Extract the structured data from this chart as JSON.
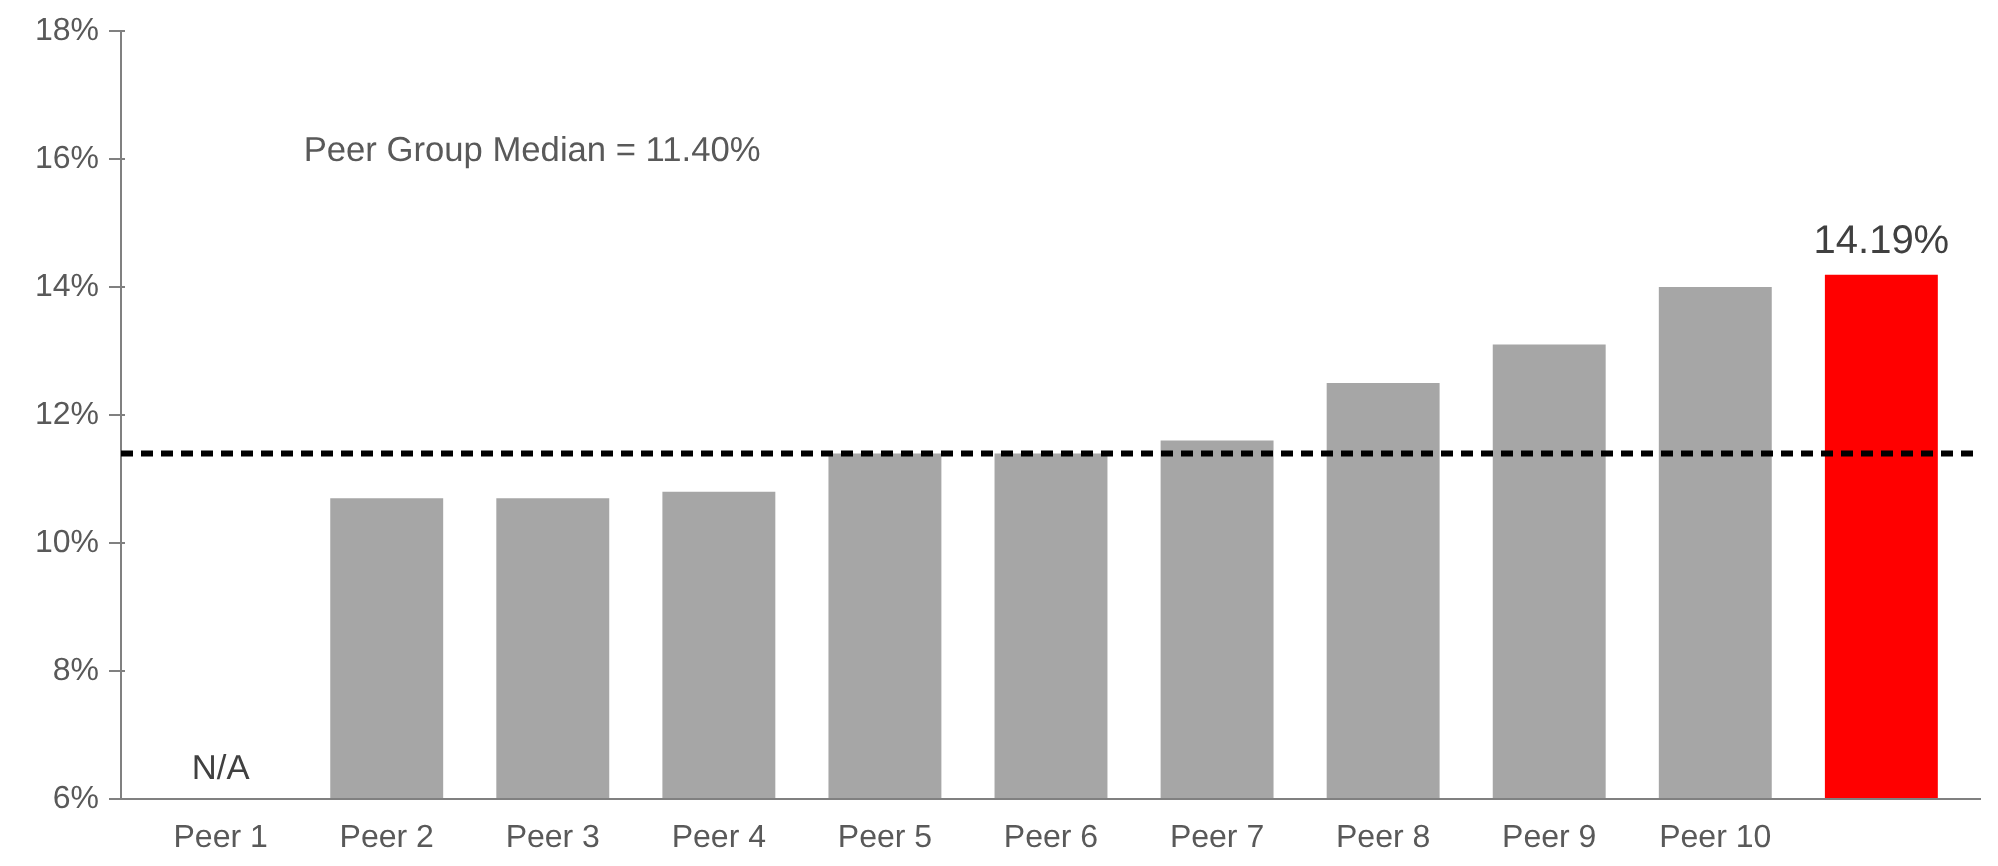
{
  "chart_data": {
    "type": "bar",
    "categories": [
      "Peer 1",
      "Peer 2",
      "Peer 3",
      "Peer 4",
      "Peer 5",
      "Peer 6",
      "Peer 7",
      "Peer 8",
      "Peer 9",
      "Peer 10",
      null
    ],
    "values": [
      null,
      10.7,
      10.7,
      10.8,
      11.4,
      11.4,
      11.6,
      12.5,
      13.1,
      14.0,
      14.19
    ],
    "colors": [
      "#a6a6a6",
      "#a6a6a6",
      "#a6a6a6",
      "#a6a6a6",
      "#a6a6a6",
      "#a6a6a6",
      "#a6a6a6",
      "#a6a6a6",
      "#a6a6a6",
      "#a6a6a6",
      "#ff0000"
    ],
    "value_labels": [
      "N/A",
      null,
      null,
      null,
      null,
      null,
      null,
      null,
      null,
      null,
      "14.19%"
    ],
    "ylim": [
      6,
      18
    ],
    "yticks": [
      {
        "value": 6,
        "label": "6%"
      },
      {
        "value": 8,
        "label": "8%"
      },
      {
        "value": 10,
        "label": "10%"
      },
      {
        "value": 12,
        "label": "12%"
      },
      {
        "value": 14,
        "label": "14%"
      },
      {
        "value": 16,
        "label": "16%"
      },
      {
        "value": 18,
        "label": "18%"
      }
    ],
    "ref_lines": [
      {
        "axis": "y",
        "value": 11.4,
        "color": "#000000",
        "line_style": "dashed"
      }
    ],
    "annotations": [
      "Peer Group Median = 11.40%"
    ],
    "grid": false
  }
}
